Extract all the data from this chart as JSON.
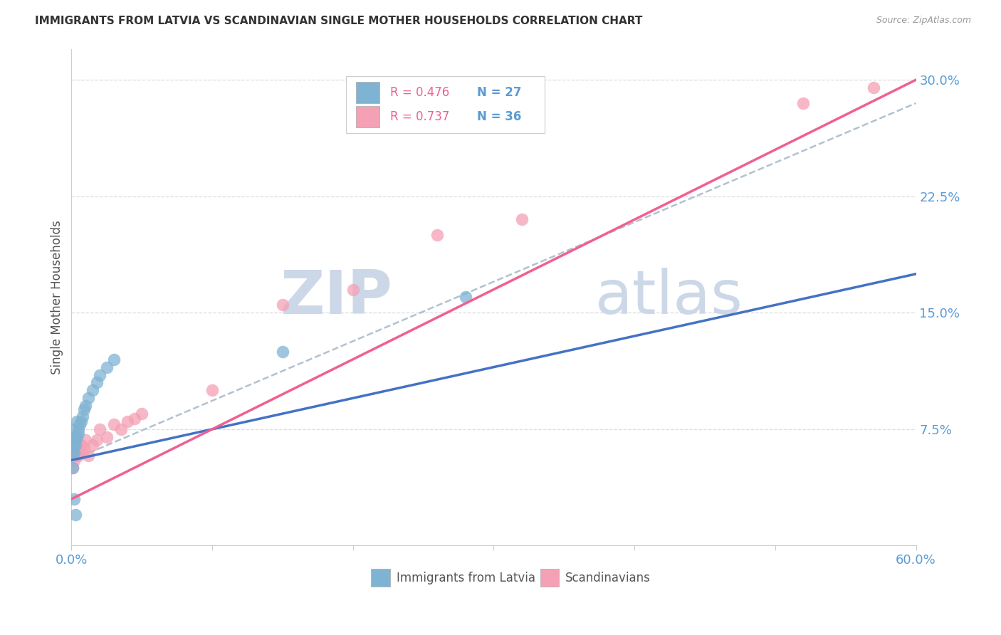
{
  "title": "IMMIGRANTS FROM LATVIA VS SCANDINAVIAN SINGLE MOTHER HOUSEHOLDS CORRELATION CHART",
  "source": "Source: ZipAtlas.com",
  "tick_color": "#5b9bd5",
  "ylabel": "Single Mother Households",
  "xlim": [
    0.0,
    0.6
  ],
  "ylim": [
    0.0,
    0.32
  ],
  "color_blue": "#7fb3d3",
  "color_pink": "#f4a0b5",
  "color_blue_line": "#4472c4",
  "color_pink_line": "#f06090",
  "color_dashed": "#aabbcc",
  "watermark_color": "#ccd8e8",
  "background_color": "#ffffff",
  "grid_color": "#dddddd",
  "latvia_x": [
    0.001,
    0.001,
    0.001,
    0.002,
    0.002,
    0.002,
    0.002,
    0.003,
    0.003,
    0.003,
    0.004,
    0.004,
    0.005,
    0.005,
    0.006,
    0.007,
    0.008,
    0.009,
    0.01,
    0.012,
    0.015,
    0.018,
    0.02,
    0.025,
    0.03,
    0.15,
    0.28
  ],
  "latvia_y": [
    0.05,
    0.06,
    0.075,
    0.06,
    0.065,
    0.07,
    0.03,
    0.065,
    0.068,
    0.02,
    0.07,
    0.08,
    0.072,
    0.075,
    0.078,
    0.08,
    0.083,
    0.088,
    0.09,
    0.095,
    0.1,
    0.105,
    0.11,
    0.115,
    0.12,
    0.125,
    0.16
  ],
  "scandi_x": [
    0.001,
    0.001,
    0.001,
    0.002,
    0.002,
    0.002,
    0.003,
    0.003,
    0.003,
    0.004,
    0.004,
    0.005,
    0.005,
    0.006,
    0.006,
    0.007,
    0.008,
    0.009,
    0.01,
    0.012,
    0.015,
    0.018,
    0.02,
    0.025,
    0.03,
    0.035,
    0.04,
    0.045,
    0.05,
    0.1,
    0.15,
    0.2,
    0.26,
    0.32,
    0.52,
    0.57
  ],
  "scandi_y": [
    0.05,
    0.06,
    0.065,
    0.055,
    0.06,
    0.065,
    0.06,
    0.065,
    0.07,
    0.058,
    0.062,
    0.058,
    0.063,
    0.06,
    0.065,
    0.065,
    0.06,
    0.063,
    0.068,
    0.058,
    0.065,
    0.068,
    0.075,
    0.07,
    0.078,
    0.075,
    0.08,
    0.082,
    0.085,
    0.1,
    0.155,
    0.165,
    0.2,
    0.21,
    0.285,
    0.295
  ],
  "blue_line_x0": 0.0,
  "blue_line_y0": 0.055,
  "blue_line_x1": 0.6,
  "blue_line_y1": 0.175,
  "pink_line_x0": 0.0,
  "pink_line_y0": 0.03,
  "pink_line_x1": 0.6,
  "pink_line_y1": 0.3,
  "dash_line_x0": 0.0,
  "dash_line_y0": 0.055,
  "dash_line_x1": 0.6,
  "dash_line_y1": 0.285
}
